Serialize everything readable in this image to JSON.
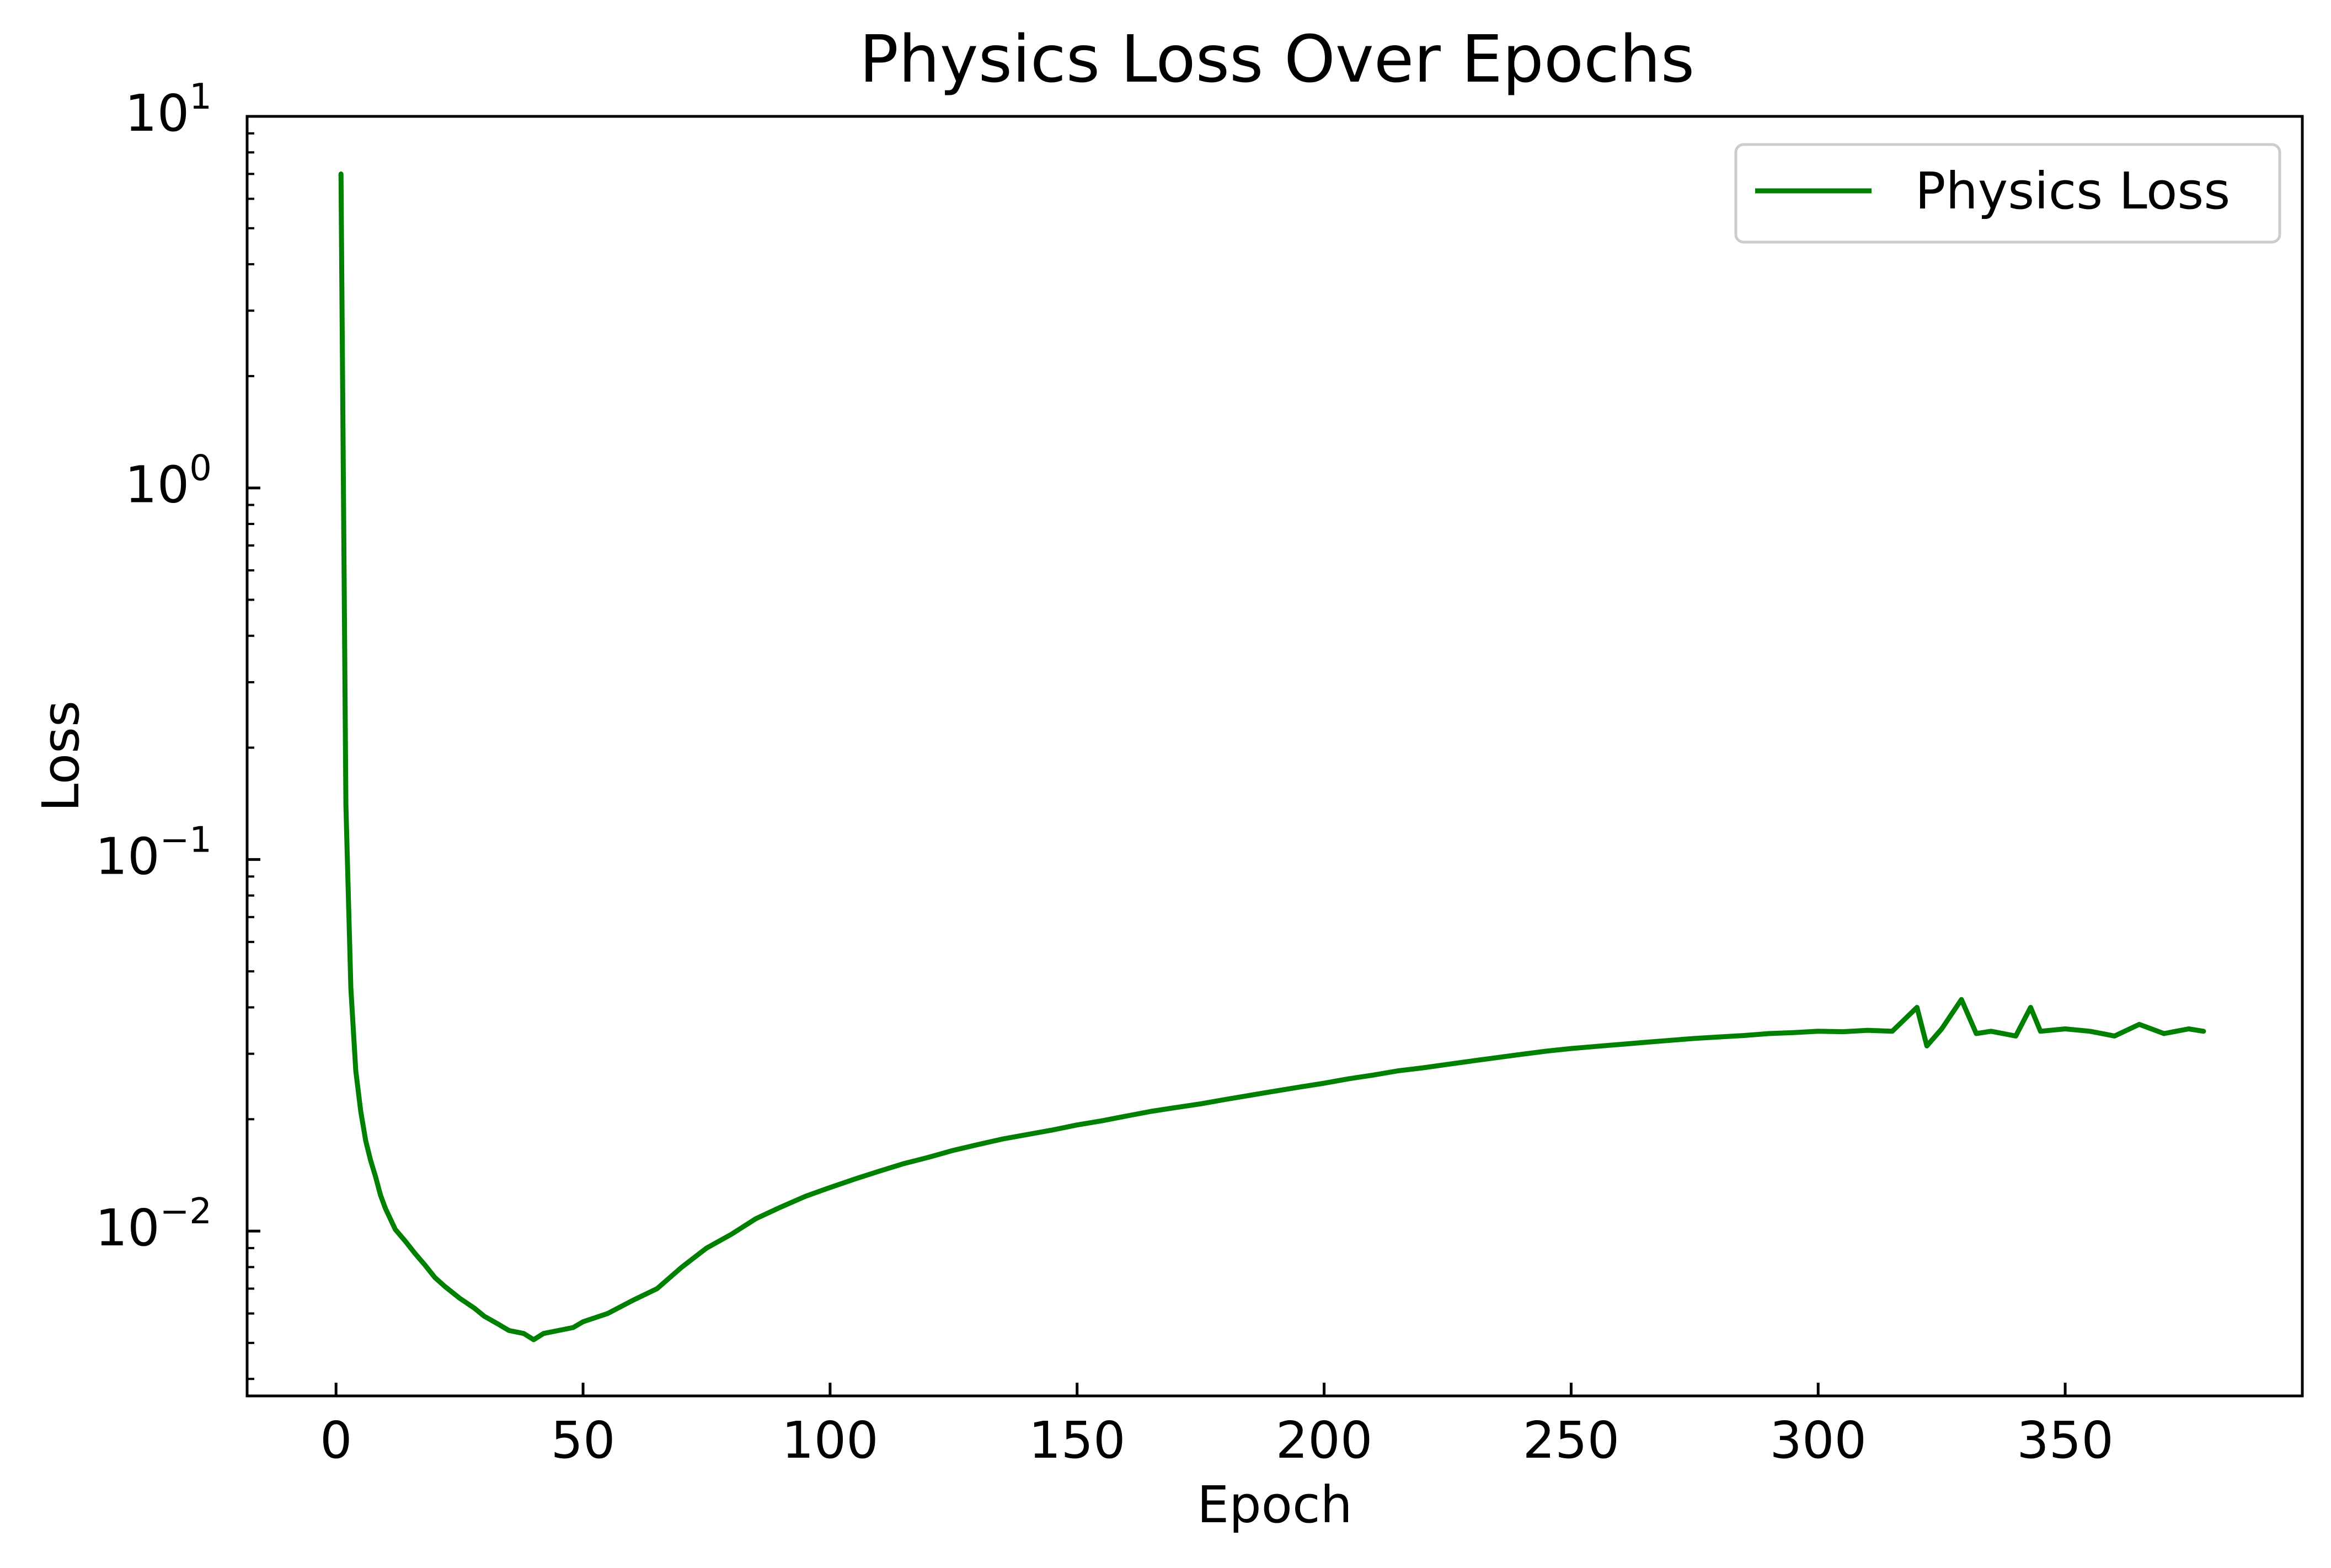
{
  "chart_data": {
    "type": "line",
    "title": "Physics Loss Over Epochs",
    "xlabel": "Epoch",
    "ylabel": "Loss",
    "xscale": "linear",
    "yscale": "log",
    "xlim": [
      -18,
      398
    ],
    "ylim": [
      0.0036,
      10
    ],
    "x_ticks": [
      0,
      50,
      100,
      150,
      200,
      250,
      300,
      350
    ],
    "x_tick_labels": [
      "0",
      "50",
      "100",
      "150",
      "200",
      "250",
      "300",
      "350"
    ],
    "y_ticks": [
      {
        "value": 10,
        "base": "10",
        "exp": "1"
      },
      {
        "value": 1,
        "base": "10",
        "exp": "0"
      },
      {
        "value": 0.1,
        "base": "10",
        "exp": "−1"
      },
      {
        "value": 0.01,
        "base": "10",
        "exp": "−2"
      }
    ],
    "grid": false,
    "legend": {
      "position": "top-right",
      "entries": [
        "Physics Loss"
      ]
    },
    "series": [
      {
        "name": "Physics Loss",
        "color": "#008000",
        "x": [
          1,
          2,
          3,
          4,
          5,
          6,
          7,
          8,
          9,
          10,
          12,
          14,
          16,
          18,
          20,
          22,
          25,
          28,
          30,
          33,
          35,
          38,
          40,
          42,
          45,
          48,
          50,
          55,
          60,
          65,
          70,
          75,
          80,
          85,
          90,
          95,
          100,
          105,
          110,
          115,
          120,
          125,
          130,
          135,
          140,
          145,
          150,
          155,
          160,
          165,
          170,
          175,
          180,
          185,
          190,
          195,
          200,
          205,
          210,
          215,
          220,
          225,
          230,
          235,
          240,
          245,
          250,
          255,
          260,
          265,
          270,
          275,
          280,
          285,
          290,
          295,
          300,
          305,
          310,
          315,
          320,
          322,
          325,
          329,
          332,
          335,
          340,
          343,
          345,
          350,
          355,
          360,
          365,
          370,
          375,
          378
        ],
        "values": [
          7.0,
          0.14,
          0.045,
          0.027,
          0.021,
          0.0175,
          0.0155,
          0.014,
          0.0125,
          0.0115,
          0.0101,
          0.0094,
          0.0087,
          0.0081,
          0.0075,
          0.0071,
          0.0066,
          0.0062,
          0.0059,
          0.0056,
          0.0054,
          0.0053,
          0.0051,
          0.0053,
          0.0054,
          0.0055,
          0.0057,
          0.006,
          0.0065,
          0.007,
          0.008,
          0.009,
          0.0098,
          0.0108,
          0.0116,
          0.0124,
          0.0131,
          0.0138,
          0.0145,
          0.0152,
          0.0158,
          0.0165,
          0.0171,
          0.0177,
          0.0182,
          0.0187,
          0.0193,
          0.0198,
          0.0204,
          0.021,
          0.0215,
          0.022,
          0.0226,
          0.0232,
          0.0238,
          0.0244,
          0.025,
          0.0257,
          0.0263,
          0.027,
          0.0275,
          0.0281,
          0.0287,
          0.0293,
          0.0299,
          0.0305,
          0.031,
          0.0314,
          0.0318,
          0.0322,
          0.0326,
          0.033,
          0.0333,
          0.0336,
          0.034,
          0.0342,
          0.0345,
          0.0344,
          0.0347,
          0.0345,
          0.04,
          0.0315,
          0.035,
          0.042,
          0.034,
          0.0345,
          0.0335,
          0.04,
          0.0345,
          0.035,
          0.0345,
          0.0335,
          0.036,
          0.034,
          0.035,
          0.0345
        ]
      }
    ]
  }
}
